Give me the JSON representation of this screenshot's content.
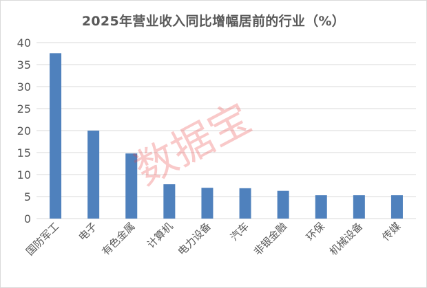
{
  "chart_data": {
    "type": "bar",
    "title": "2025年营业收入同比增幅居前的行业（%）",
    "categories": [
      "国防军工",
      "电子",
      "有色金属",
      "计算机",
      "电力设备",
      "汽车",
      "非银金融",
      "环保",
      "机械设备",
      "传媒"
    ],
    "values": [
      37.6,
      20.0,
      14.8,
      7.8,
      7.0,
      6.9,
      6.3,
      5.3,
      5.3,
      5.3
    ],
    "ylim": [
      0,
      40
    ],
    "yticks": [
      0,
      5,
      10,
      15,
      20,
      25,
      30,
      35,
      40
    ],
    "xlabel": "",
    "ylabel": "",
    "grid": true,
    "bar_color": "#4f81bd",
    "grid_color": "#d9d9d9"
  },
  "watermark": "数据宝"
}
